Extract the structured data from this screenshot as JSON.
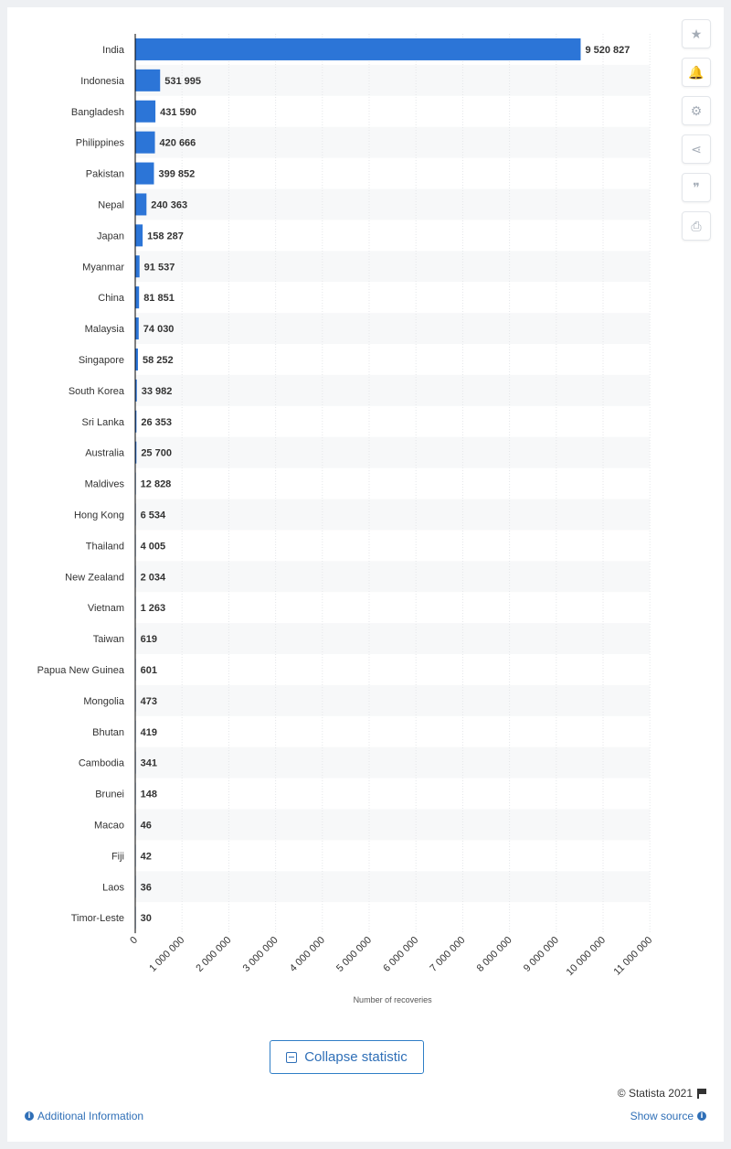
{
  "sidebar": {
    "buttons": [
      {
        "name": "star-icon",
        "glyph": "★"
      },
      {
        "name": "bell-icon",
        "glyph": "🔔"
      },
      {
        "name": "gear-icon",
        "glyph": "⚙"
      },
      {
        "name": "share-icon",
        "glyph": "⋖"
      },
      {
        "name": "quote-icon",
        "glyph": "❞"
      },
      {
        "name": "print-icon",
        "glyph": "⎙"
      }
    ]
  },
  "actions": {
    "collapse_label": "Collapse statistic"
  },
  "footer": {
    "copyright": "© Statista 2021",
    "additional_info": "Additional Information",
    "show_source": "Show source"
  },
  "colors": {
    "bar": "#2c75d7",
    "stripe": "#f7f8f9",
    "axis": "#000000",
    "grid": "#e4e6e9",
    "label": "#333333"
  },
  "chart_data": {
    "type": "bar",
    "orientation": "horizontal",
    "xlabel": "Number of recoveries",
    "xlim": [
      0,
      11000000
    ],
    "xticks": [
      0,
      1000000,
      2000000,
      3000000,
      4000000,
      5000000,
      6000000,
      7000000,
      8000000,
      9000000,
      10000000,
      11000000
    ],
    "xtick_labels": [
      "0",
      "1 000 000",
      "2 000 000",
      "3 000 000",
      "4 000 000",
      "5 000 000",
      "6 000 000",
      "7 000 000",
      "8 000 000",
      "9 000 000",
      "10 000 000",
      "11 000 000"
    ],
    "categories": [
      "India",
      "Indonesia",
      "Bangladesh",
      "Philippines",
      "Pakistan",
      "Nepal",
      "Japan",
      "Myanmar",
      "China",
      "Malaysia",
      "Singapore",
      "South Korea",
      "Sri Lanka",
      "Australia",
      "Maldives",
      "Hong Kong",
      "Thailand",
      "New Zealand",
      "Vietnam",
      "Taiwan",
      "Papua New Guinea",
      "Mongolia",
      "Bhutan",
      "Cambodia",
      "Brunei",
      "Macao",
      "Fiji",
      "Laos",
      "Timor-Leste"
    ],
    "values": [
      9520827,
      531995,
      431590,
      420666,
      399852,
      240363,
      158287,
      91537,
      81851,
      74030,
      58252,
      33982,
      26353,
      25700,
      12828,
      6534,
      4005,
      2034,
      1263,
      619,
      601,
      473,
      419,
      341,
      148,
      46,
      42,
      36,
      30
    ],
    "value_labels": [
      "9 520 827",
      "531 995",
      "431 590",
      "420 666",
      "399 852",
      "240 363",
      "158 287",
      "91 537",
      "81 851",
      "74 030",
      "58 252",
      "33 982",
      "26 353",
      "25 700",
      "12 828",
      "6 534",
      "4 005",
      "2 034",
      "1 263",
      "619",
      "601",
      "473",
      "419",
      "341",
      "148",
      "46",
      "42",
      "36",
      "30"
    ],
    "grid": true,
    "legend": "none"
  }
}
